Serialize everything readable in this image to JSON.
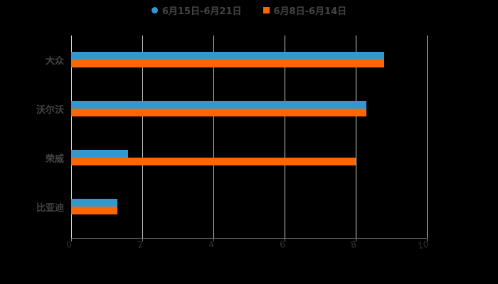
{
  "chart_data": {
    "type": "bar",
    "orientation": "horizontal",
    "title": "",
    "categories": [
      "大众",
      "沃尔沃",
      "荣威",
      "比亚迪"
    ],
    "series": [
      {
        "name": "6月15日-6月21日",
        "color": "#3399cc",
        "values": [
          8.8,
          8.3,
          1.6,
          1.3
        ]
      },
      {
        "name": "6月8日-6月14日",
        "color": "#ff6600",
        "values": [
          8.8,
          8.3,
          8.0,
          1.3
        ]
      }
    ],
    "xlabel": "",
    "ylabel": "",
    "xlim": [
      0,
      10
    ],
    "xticks": [
      "0",
      "2",
      "4",
      "6",
      "8",
      "10"
    ],
    "grid": true,
    "legend_position": "top"
  },
  "legend": {
    "items": [
      {
        "label": "6月15日-6月21日",
        "color": "#3399cc",
        "shape": "circle"
      },
      {
        "label": "6月8日-6月14日",
        "color": "#ff6600",
        "shape": "square"
      }
    ]
  }
}
